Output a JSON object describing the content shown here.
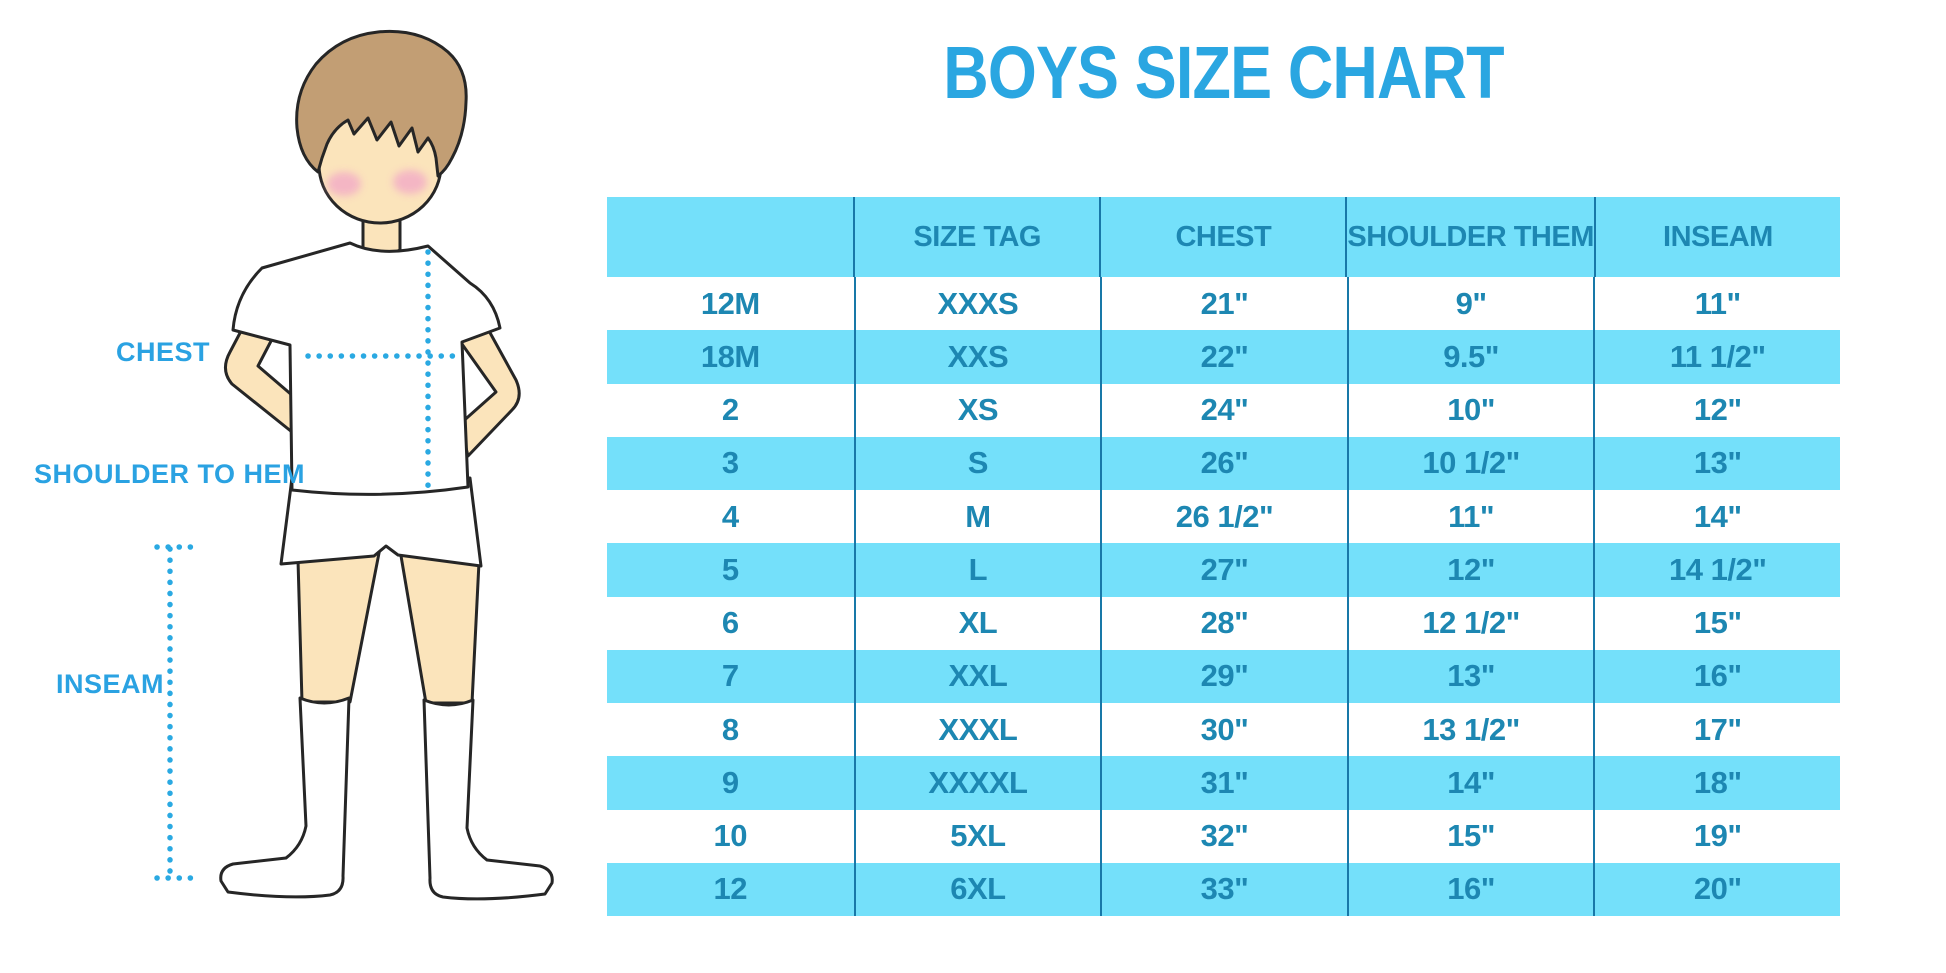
{
  "chart_data": {
    "type": "table",
    "title": "BOYS SIZE CHART",
    "columns": [
      "",
      "SIZE TAG",
      "CHEST",
      "SHOULDER THEM",
      "INSEAM"
    ],
    "rows": [
      [
        "12M",
        "XXXS",
        "21\"",
        "9\"",
        "11\""
      ],
      [
        "18M",
        "XXS",
        "22\"",
        "9.5\"",
        "11 1/2\""
      ],
      [
        "2",
        "XS",
        "24\"",
        "10\"",
        "12\""
      ],
      [
        "3",
        "S",
        "26\"",
        "10 1/2\"",
        "13\""
      ],
      [
        "4",
        "M",
        "26 1/2\"",
        "11\"",
        "14\""
      ],
      [
        "5",
        "L",
        "27\"",
        "12\"",
        "14 1/2\""
      ],
      [
        "6",
        "XL",
        "28\"",
        "12 1/2\"",
        "15\""
      ],
      [
        "7",
        "XXL",
        "29\"",
        "13\"",
        "16\""
      ],
      [
        "8",
        "XXXL",
        "30\"",
        "13 1/2\"",
        "17\""
      ],
      [
        "9",
        "XXXXL",
        "31\"",
        "14\"",
        "18\""
      ],
      [
        "10",
        "5XL",
        "32\"",
        "15\"",
        "19\""
      ],
      [
        "12",
        "6XL",
        "33\"",
        "16\"",
        "20\""
      ]
    ]
  },
  "figure": {
    "labels": {
      "chest": "CHEST",
      "shoulder_to_hem": "SHOULDER TO HEM",
      "inseam": "INSEAM"
    }
  },
  "colors": {
    "title_blue": "#2aa6e1",
    "label_blue": "#2aa2e2",
    "band_cyan": "#74e0fa",
    "table_text": "#1d87b2",
    "divider": "#1878a8",
    "dotted": "#2aa9e2",
    "skin": "#fbe4bb",
    "hair": "#c29e74",
    "blush": "#f3aec6",
    "outline": "#262626"
  }
}
